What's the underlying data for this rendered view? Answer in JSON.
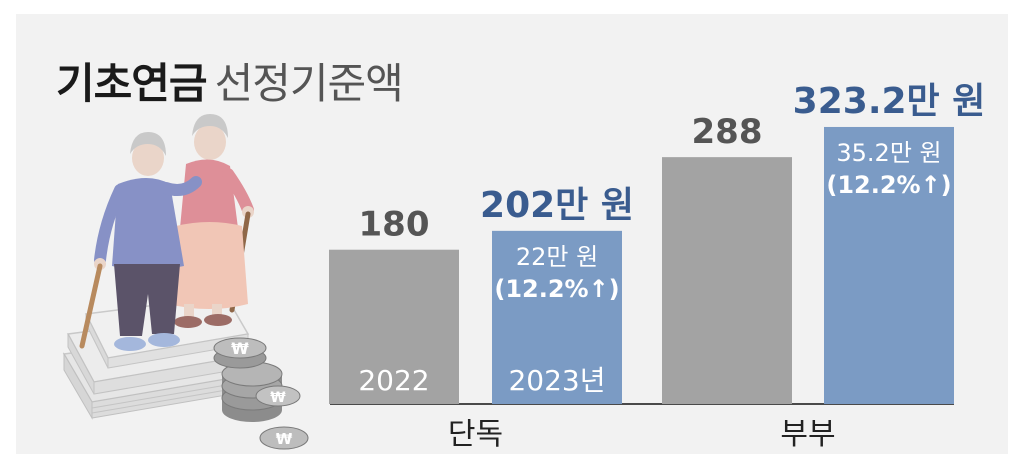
{
  "title": {
    "bold": "기초연금",
    "light": "선정기준액"
  },
  "colors": {
    "gray_bar": "#a3a3a3",
    "blue_bar": "#7b9bc4",
    "value_blue": "#3a5c8f",
    "value_gray": "#555555"
  },
  "illustration": "elderly-couple-with-coins",
  "chart_data": {
    "type": "bar",
    "categories": [
      "단독",
      "부부"
    ],
    "series": [
      {
        "name": "2022",
        "values": [
          180,
          288
        ]
      },
      {
        "name": "2023년",
        "values": [
          202,
          323.2
        ]
      }
    ],
    "value_labels": {
      "2022": [
        "180",
        "288"
      ],
      "2023": [
        "202만 원",
        "323.2만 원"
      ]
    },
    "increase_amount": [
      "22만 원",
      "35.2만 원"
    ],
    "increase_rate": [
      "(12.2%↑)",
      "(12.2%↑)"
    ],
    "ylim": [
      0,
      420
    ],
    "grid": false,
    "legend": "none"
  }
}
